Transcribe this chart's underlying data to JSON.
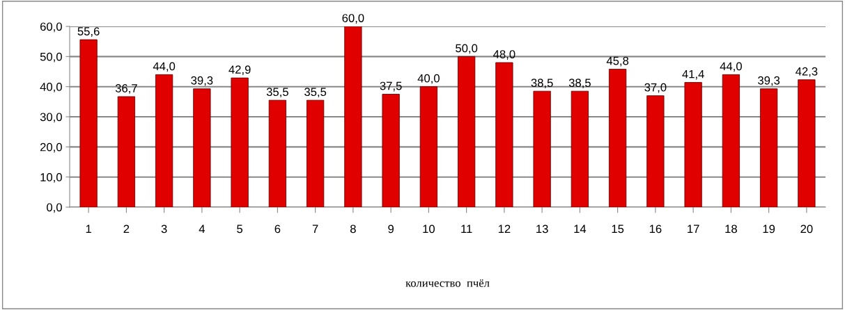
{
  "chart_data": {
    "type": "bar",
    "xlabel": "количество  пчёл",
    "categories": [
      "1",
      "2",
      "3",
      "4",
      "5",
      "6",
      "7",
      "8",
      "9",
      "10",
      "11",
      "12",
      "13",
      "14",
      "15",
      "16",
      "17",
      "18",
      "19",
      "20"
    ],
    "values": [
      55.6,
      36.7,
      44.0,
      39.3,
      42.9,
      35.5,
      35.5,
      60.0,
      37.5,
      40.0,
      50.0,
      48.0,
      38.5,
      38.5,
      45.8,
      37.0,
      41.4,
      44.0,
      39.3,
      42.3
    ],
    "value_labels": [
      "55,6",
      "36,7",
      "44,0",
      "39,3",
      "42,9",
      "35,5",
      "35,5",
      "60,0",
      "37,5",
      "40,0",
      "50,0",
      "48,0",
      "38,5",
      "38,5",
      "45,8",
      "37,0",
      "41,4",
      "44,0",
      "39,3",
      "42,3"
    ],
    "color": "#e00000",
    "ylim": [
      0,
      60
    ],
    "yticks": [
      {
        "value": 0,
        "label": "0,0"
      },
      {
        "value": 10,
        "label": "10,0"
      },
      {
        "value": 20,
        "label": "20,0"
      },
      {
        "value": 30,
        "label": "30,0"
      },
      {
        "value": 40,
        "label": "40,0"
      },
      {
        "value": 50,
        "label": "50,0"
      },
      {
        "value": 60,
        "label": "60,0"
      }
    ],
    "grid": "y",
    "legend": false
  }
}
